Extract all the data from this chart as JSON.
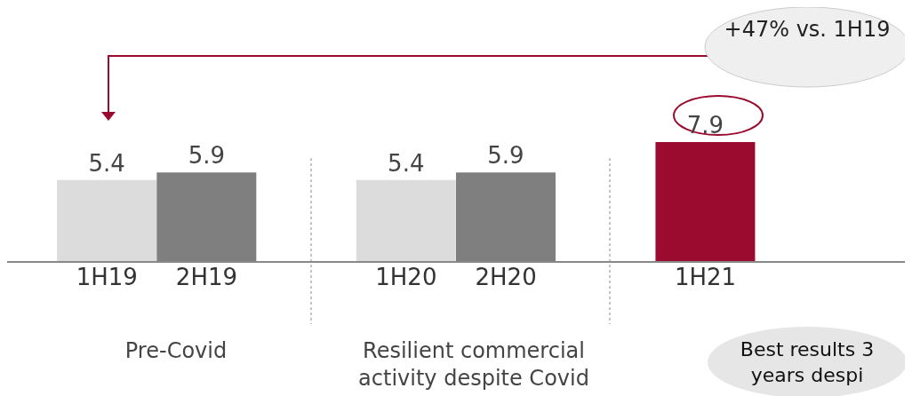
{
  "chart_data": {
    "type": "bar",
    "categories": [
      "1H19",
      "2H19",
      "1H20",
      "2H20",
      "1H21"
    ],
    "values": [
      5.4,
      5.9,
      5.4,
      5.9,
      7.9
    ],
    "colors": [
      "#dcdcdc",
      "#7f7f7f",
      "#dcdcdc",
      "#7f7f7f",
      "#9b0a2f"
    ],
    "data_labels": true,
    "annotations": [
      "+47% vs. 1H19",
      "Pre-Covid",
      "Resilient commercial activity despite Covid",
      "Best results 3 years despi"
    ]
  }
}
